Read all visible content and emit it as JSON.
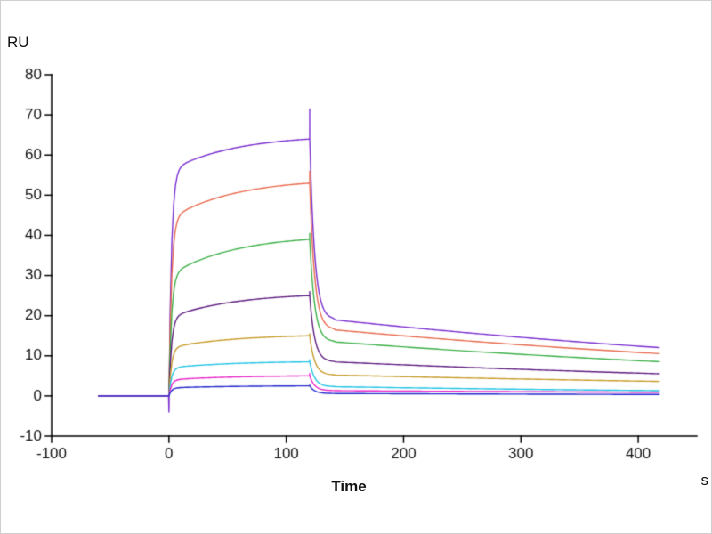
{
  "chart_data": {
    "type": "line",
    "title": "",
    "xlabel": "Time",
    "ylabel": "RU",
    "x_unit": "s",
    "xlim": [
      -100,
      450
    ],
    "ylim": [
      -10,
      80
    ],
    "xticks": [
      -100,
      0,
      100,
      200,
      300,
      400
    ],
    "yticks": [
      -10,
      0,
      10,
      20,
      30,
      40,
      50,
      60,
      70,
      80
    ],
    "grid": false,
    "legend": "none",
    "baseline_start": -60,
    "association_start": 0,
    "association_end": 120,
    "dissociation_end": 420,
    "axis_color": "#000000",
    "series": [
      {
        "name": "curve-64RU",
        "color": "#7a2fd0",
        "assoc_fast": 56,
        "assoc_end": 64,
        "spike_peak": 71.5,
        "diss_start": 19,
        "diss_end": 12,
        "start_spike": -4
      },
      {
        "name": "curve-53RU",
        "color": "#e86a4e",
        "assoc_fast": 44,
        "assoc_end": 53,
        "spike_peak": 56,
        "diss_start": 16.5,
        "diss_end": 10.5
      },
      {
        "name": "curve-39RU",
        "color": "#3cb048",
        "assoc_fast": 30,
        "assoc_end": 39,
        "spike_peak": 40.5,
        "diss_start": 13.5,
        "diss_end": 8.5
      },
      {
        "name": "curve-25RU",
        "color": "#5e1d80",
        "assoc_fast": 19.5,
        "assoc_end": 25,
        "spike_peak": 26,
        "diss_start": 8.5,
        "diss_end": 5.5
      },
      {
        "name": "curve-15RU",
        "color": "#c79b2a",
        "assoc_fast": 12,
        "assoc_end": 15,
        "spike_peak": 15.5,
        "diss_start": 5.2,
        "diss_end": 3.6
      },
      {
        "name": "curve-8RU",
        "color": "#22c4e4",
        "assoc_fast": 7,
        "assoc_end": 8.5,
        "spike_peak": 9,
        "diss_start": 2.3,
        "diss_end": 1.3
      },
      {
        "name": "curve-5RU",
        "color": "#e826c8",
        "assoc_fast": 4,
        "assoc_end": 5,
        "spike_peak": 5.6,
        "diss_start": 1.3,
        "diss_end": 0.9
      },
      {
        "name": "curve-2RU",
        "color": "#2428cc",
        "assoc_fast": 2,
        "assoc_end": 2.5,
        "spike_peak": 2.7,
        "diss_start": 0.6,
        "diss_end": 0.35
      }
    ]
  }
}
